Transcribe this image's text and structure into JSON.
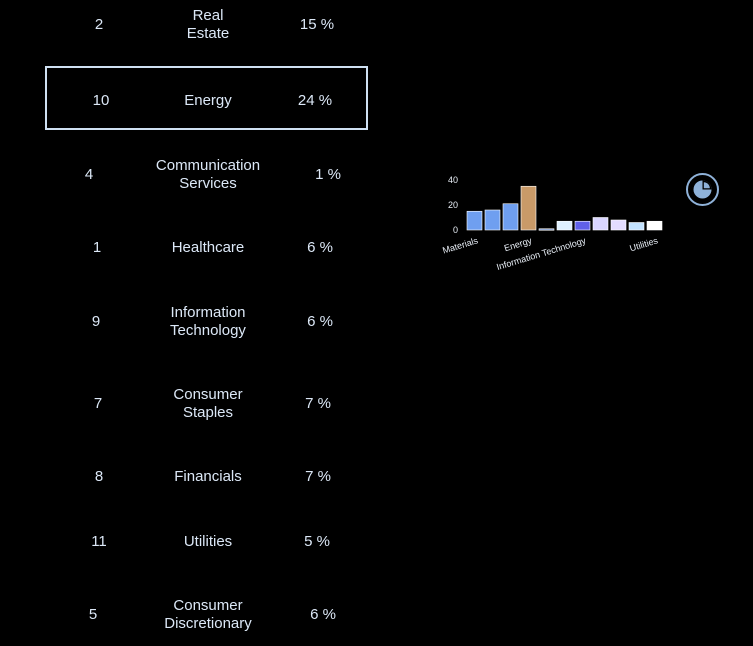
{
  "table": {
    "rows": [
      {
        "rank": "2",
        "sector": [
          "Real",
          "Estate"
        ],
        "pct": "15 %"
      },
      {
        "rank": "10",
        "sector": [
          "Energy"
        ],
        "pct": "24 %",
        "selected": true
      },
      {
        "rank": "4",
        "sector": [
          "Communication",
          "Services"
        ],
        "pct": "1 %"
      },
      {
        "rank": "1",
        "sector": [
          "Healthcare"
        ],
        "pct": "6 %"
      },
      {
        "rank": "9",
        "sector": [
          "Information",
          "Technology"
        ],
        "pct": "6 %"
      },
      {
        "rank": "7",
        "sector": [
          "Consumer",
          "Staples"
        ],
        "pct": "7 %"
      },
      {
        "rank": "8",
        "sector": [
          "Financials"
        ],
        "pct": "7 %"
      },
      {
        "rank": "11",
        "sector": [
          "Utilities"
        ],
        "pct": "5 %"
      },
      {
        "rank": "5",
        "sector": [
          "Consumer",
          "Discretionary"
        ],
        "pct": "6 %"
      }
    ]
  },
  "chart_data": {
    "type": "bar",
    "categories": [
      "Materials",
      "",
      "",
      "Energy",
      "",
      "",
      "Information Technology",
      "",
      "",
      "",
      "Utilities"
    ],
    "values": [
      15,
      16,
      21,
      35,
      1,
      7,
      7,
      10,
      8,
      6,
      7
    ],
    "colors": [
      "#6f9ff0",
      "#6f9ff0",
      "#6f9ff0",
      "#c99a68",
      "#8fa8d8",
      "#dff0ff",
      "#6060e8",
      "#dad6ff",
      "#e3dcff",
      "#c2e2ff",
      "#ffffff"
    ],
    "yticks": [
      "0",
      "20",
      "40"
    ],
    "ylim": [
      0,
      40
    ],
    "xlabel": "",
    "ylabel": "",
    "grid": false
  },
  "pie_button": {
    "icon": "pie-chart-icon",
    "color": "#8fb2d9"
  }
}
